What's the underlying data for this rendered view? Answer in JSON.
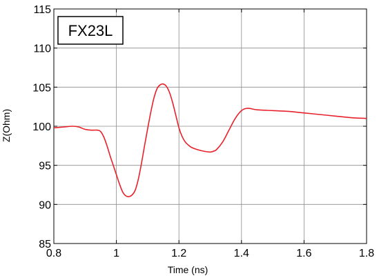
{
  "chart_data": {
    "type": "line",
    "title": "",
    "xlabel": "Time (ns)",
    "ylabel": "Z(Ohm)",
    "xlim": [
      0.8,
      1.8
    ],
    "ylim": [
      85,
      115
    ],
    "xticks": [
      0.8,
      1.0,
      1.2,
      1.4,
      1.6,
      1.8
    ],
    "xtick_labels": [
      "0.8",
      "1",
      "1.2",
      "1.4",
      "1.6",
      "1.8"
    ],
    "yticks": [
      85,
      90,
      95,
      100,
      105,
      110,
      115
    ],
    "ytick_labels": [
      "85",
      "90",
      "95",
      "100",
      "105",
      "110",
      "115"
    ],
    "grid": true,
    "legend_box": {
      "text": "FX23L",
      "position": "top-left"
    },
    "series": [
      {
        "color": "#e8202a",
        "x": [
          0.8,
          0.83,
          0.86,
          0.88,
          0.9,
          0.92,
          0.94,
          0.95,
          0.96,
          0.97,
          0.98,
          0.99,
          1.0,
          1.01,
          1.02,
          1.03,
          1.04,
          1.05,
          1.06,
          1.07,
          1.08,
          1.09,
          1.1,
          1.11,
          1.12,
          1.13,
          1.14,
          1.15,
          1.16,
          1.17,
          1.18,
          1.19,
          1.2,
          1.21,
          1.22,
          1.23,
          1.24,
          1.26,
          1.28,
          1.3,
          1.31,
          1.32,
          1.34,
          1.36,
          1.38,
          1.4,
          1.42,
          1.45,
          1.5,
          1.55,
          1.6,
          1.65,
          1.7,
          1.75,
          1.8
        ],
        "y": [
          99.8,
          99.9,
          100.0,
          99.9,
          99.6,
          99.5,
          99.5,
          99.3,
          98.6,
          97.5,
          96.2,
          95.0,
          93.8,
          92.6,
          91.6,
          91.1,
          91.0,
          91.2,
          91.8,
          93.2,
          95.2,
          97.5,
          99.7,
          101.8,
          103.6,
          104.8,
          105.3,
          105.4,
          105.1,
          104.3,
          103.0,
          101.4,
          99.8,
          98.7,
          98.0,
          97.6,
          97.3,
          97.0,
          96.8,
          96.7,
          96.8,
          97.0,
          98.0,
          99.5,
          101.0,
          102.0,
          102.3,
          102.1,
          102.0,
          101.9,
          101.7,
          101.5,
          101.3,
          101.1,
          101.0
        ]
      }
    ]
  }
}
